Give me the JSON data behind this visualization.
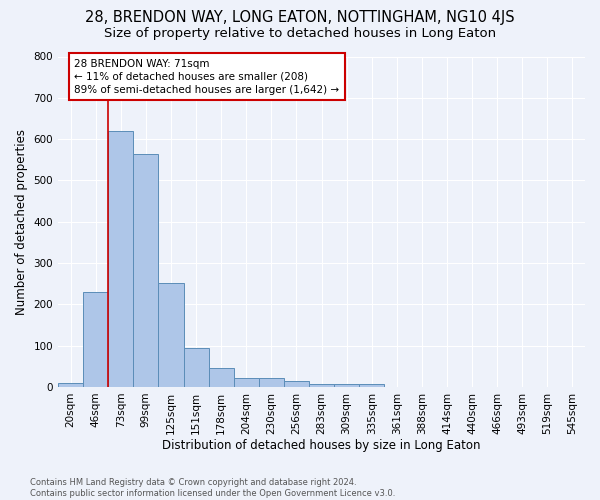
{
  "title": "28, BRENDON WAY, LONG EATON, NOTTINGHAM, NG10 4JS",
  "subtitle": "Size of property relative to detached houses in Long Eaton",
  "xlabel": "Distribution of detached houses by size in Long Eaton",
  "ylabel": "Number of detached properties",
  "footnote1": "Contains HM Land Registry data © Crown copyright and database right 2024.",
  "footnote2": "Contains public sector information licensed under the Open Government Licence v3.0.",
  "bar_labels": [
    "20sqm",
    "46sqm",
    "73sqm",
    "99sqm",
    "125sqm",
    "151sqm",
    "178sqm",
    "204sqm",
    "230sqm",
    "256sqm",
    "283sqm",
    "309sqm",
    "335sqm",
    "361sqm",
    "388sqm",
    "414sqm",
    "440sqm",
    "466sqm",
    "493sqm",
    "519sqm",
    "545sqm"
  ],
  "bar_values": [
    10,
    230,
    620,
    565,
    252,
    95,
    45,
    22,
    22,
    14,
    6,
    6,
    7,
    0,
    0,
    0,
    0,
    0,
    0,
    0,
    0
  ],
  "bar_color": "#aec6e8",
  "bar_edge_color": "#5b8db8",
  "annotation_text": "28 BRENDON WAY: 71sqm\n← 11% of detached houses are smaller (208)\n89% of semi-detached houses are larger (1,642) →",
  "annotation_box_color": "#cc0000",
  "ylim": [
    0,
    800
  ],
  "yticks": [
    0,
    100,
    200,
    300,
    400,
    500,
    600,
    700,
    800
  ],
  "background_color": "#eef2fa",
  "grid_color": "#ffffff",
  "title_fontsize": 10.5,
  "subtitle_fontsize": 9.5,
  "axis_label_fontsize": 8.5,
  "tick_fontsize": 7.5,
  "footnote_fontsize": 6.0,
  "annotation_fontsize": 7.5
}
